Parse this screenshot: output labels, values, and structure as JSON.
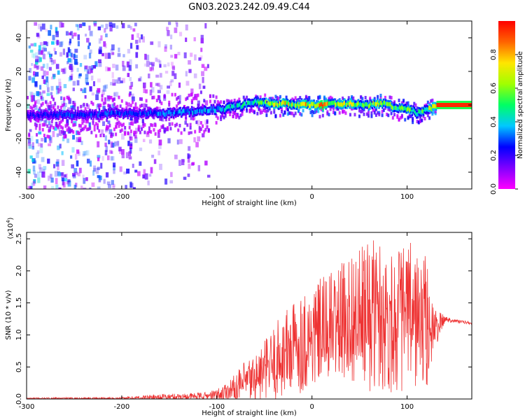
{
  "title": "GN03.2023.242.09.49.C44",
  "chart_data": [
    {
      "type": "heatmap",
      "xlabel": "Height of straight line (km)",
      "ylabel": "Frequency (Hz)",
      "xlim": [
        -300,
        168
      ],
      "ylim": [
        -50,
        50
      ],
      "xticks": [
        "-300",
        "-200",
        "-100",
        "0",
        "100"
      ],
      "yticks": [
        "40",
        "20",
        "0",
        "-20",
        "-40"
      ],
      "colorbar": {
        "label": "Normalized spectral amplitude",
        "range": [
          0,
          1
        ],
        "ticks": [
          "0.0",
          "0.2",
          "0.4",
          "0.6",
          "0.8"
        ],
        "colormap": [
          "#ff00ff",
          "#8000ff",
          "#0000ff",
          "#00c8ff",
          "#00ff64",
          "#a0ff00",
          "#ffe600",
          "#ff6400",
          "#ff0000"
        ]
      },
      "ridge": {
        "x": [
          -300,
          -250,
          -200,
          -160,
          -130,
          -110,
          -90,
          -70,
          -60,
          -50,
          -40,
          -30,
          -20,
          -10,
          0,
          10,
          20,
          30,
          40,
          50,
          60,
          70,
          80,
          90,
          100,
          110,
          120,
          130,
          168
        ],
        "freq": [
          -6,
          -6,
          -5,
          -5,
          -4,
          -3,
          -2,
          0,
          2,
          1,
          0,
          1,
          0,
          0,
          0,
          0,
          1,
          0,
          1,
          0,
          0,
          1,
          0,
          -2,
          -2,
          -5,
          -3,
          0,
          0
        ],
        "amplitude": [
          0.25,
          0.3,
          0.3,
          0.35,
          0.38,
          0.42,
          0.45,
          0.5,
          0.55,
          0.58,
          0.75,
          0.8,
          0.7,
          0.8,
          0.82,
          0.85,
          0.78,
          0.72,
          0.7,
          0.66,
          0.6,
          0.75,
          0.62,
          0.6,
          0.62,
          0.58,
          0.6,
          0.95,
          0.95
        ]
      },
      "scatter_extent_km": [
        -300,
        -130
      ]
    },
    {
      "type": "line",
      "xlabel": "Height of straight line (km)",
      "ylabel": "SNR (10 * v/v)",
      "yscale_label": "(x10",
      "yscale_exp": "4",
      "yscale_close": ")",
      "xlim": [
        -300,
        168
      ],
      "ylim": [
        0,
        2.6
      ],
      "xticks": [
        "-300",
        "-200",
        "-100",
        "0",
        "100"
      ],
      "yticks": [
        "0.0",
        "0.5",
        "1.0",
        "1.5",
        "2.0",
        "2.5"
      ],
      "color": "#ee3333",
      "envelope": {
        "x": [
          -300,
          -200,
          -160,
          -130,
          -110,
          -100,
          -90,
          -80,
          -70,
          -60,
          -50,
          -40,
          -30,
          -20,
          -10,
          0,
          10,
          20,
          30,
          40,
          50,
          60,
          70,
          80,
          90,
          100,
          110,
          120,
          130,
          140,
          150,
          168
        ],
        "mean": [
          0.01,
          0.01,
          0.03,
          0.04,
          0.05,
          0.06,
          0.1,
          0.15,
          0.25,
          0.32,
          0.42,
          0.55,
          0.7,
          0.8,
          0.9,
          0.95,
          1.05,
          1.15,
          1.2,
          1.3,
          1.25,
          1.3,
          1.35,
          1.2,
          1.25,
          1.3,
          1.25,
          1.15,
          1.1,
          1.25,
          1.22,
          1.18
        ],
        "amp": [
          0.01,
          0.02,
          0.05,
          0.05,
          0.06,
          0.1,
          0.18,
          0.25,
          0.35,
          0.4,
          0.5,
          0.6,
          0.7,
          0.75,
          0.8,
          0.8,
          0.85,
          0.85,
          0.9,
          1.0,
          1.1,
          1.2,
          1.2,
          1.1,
          1.15,
          1.2,
          1.1,
          1.1,
          0.3,
          0.05,
          0.03,
          0.02
        ]
      }
    }
  ]
}
